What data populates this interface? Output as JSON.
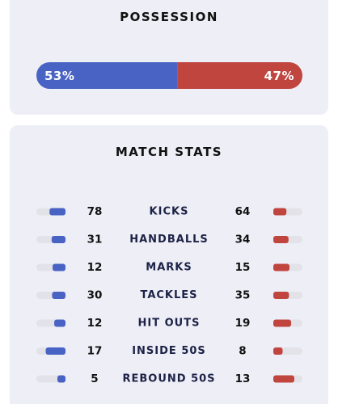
{
  "possession": {
    "title": "POSSESSION",
    "home": {
      "value": 53,
      "label": "53%",
      "color": "#4863c3"
    },
    "away": {
      "value": 47,
      "label": "47%",
      "color": "#c0453f"
    }
  },
  "stats": {
    "title": "MATCH STATS",
    "rows": [
      {
        "name": "KICKS",
        "home": 78,
        "away": 64
      },
      {
        "name": "HANDBALLS",
        "home": 31,
        "away": 34
      },
      {
        "name": "MARKS",
        "home": 12,
        "away": 15
      },
      {
        "name": "TACKLES",
        "home": 30,
        "away": 35
      },
      {
        "name": "HIT OUTS",
        "home": 12,
        "away": 19
      },
      {
        "name": "INSIDE 50S",
        "home": 17,
        "away": 8
      },
      {
        "name": "REBOUND 50S",
        "home": 5,
        "away": 13
      }
    ]
  }
}
